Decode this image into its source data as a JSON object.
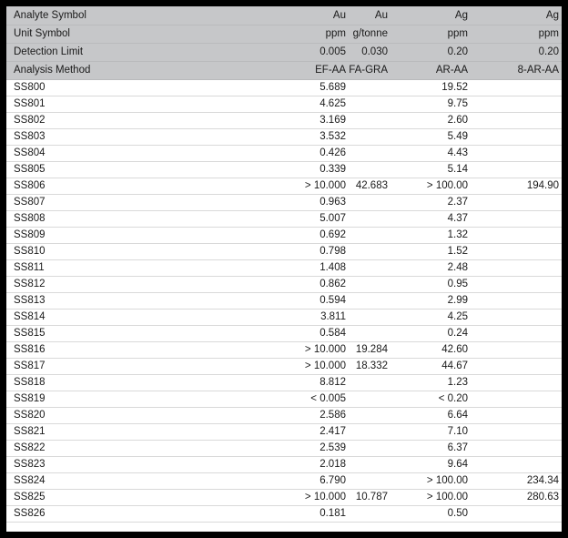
{
  "colors": {
    "frame": "#000000",
    "header_bg": "#c6c7c9",
    "row_line": "#d9d9d9"
  },
  "header": {
    "rows": [
      {
        "label": "Analyte Symbol",
        "values": [
          "Au",
          "Au",
          "Ag",
          "Ag"
        ]
      },
      {
        "label": "Unit Symbol",
        "values": [
          "ppm",
          "g/tonne",
          "ppm",
          "ppm"
        ]
      },
      {
        "label": "Detection Limit",
        "values": [
          "0.005",
          "0.030",
          "0.20",
          "0.20"
        ]
      },
      {
        "label": "Analysis Method",
        "values": [
          "EF-AA",
          "FA-GRA",
          "AR-AA",
          "8-AR-AA"
        ]
      }
    ]
  },
  "rows": [
    {
      "sample": "SS800",
      "values": [
        "5.689",
        "",
        "19.52",
        ""
      ]
    },
    {
      "sample": "SS801",
      "values": [
        "4.625",
        "",
        "9.75",
        ""
      ]
    },
    {
      "sample": "SS802",
      "values": [
        "3.169",
        "",
        "2.60",
        ""
      ]
    },
    {
      "sample": "SS803",
      "values": [
        "3.532",
        "",
        "5.49",
        ""
      ]
    },
    {
      "sample": "SS804",
      "values": [
        "0.426",
        "",
        "4.43",
        ""
      ]
    },
    {
      "sample": "SS805",
      "values": [
        "0.339",
        "",
        "5.14",
        ""
      ]
    },
    {
      "sample": "SS806",
      "values": [
        "> 10.000",
        "42.683",
        "> 100.00",
        "194.90"
      ]
    },
    {
      "sample": "SS807",
      "values": [
        "0.963",
        "",
        "2.37",
        ""
      ]
    },
    {
      "sample": "SS808",
      "values": [
        "5.007",
        "",
        "4.37",
        ""
      ]
    },
    {
      "sample": "SS809",
      "values": [
        "0.692",
        "",
        "1.32",
        ""
      ]
    },
    {
      "sample": "SS810",
      "values": [
        "0.798",
        "",
        "1.52",
        ""
      ]
    },
    {
      "sample": "SS811",
      "values": [
        "1.408",
        "",
        "2.48",
        ""
      ]
    },
    {
      "sample": "SS812",
      "values": [
        "0.862",
        "",
        "0.95",
        ""
      ]
    },
    {
      "sample": "SS813",
      "values": [
        "0.594",
        "",
        "2.99",
        ""
      ]
    },
    {
      "sample": "SS814",
      "values": [
        "3.811",
        "",
        "4.25",
        ""
      ]
    },
    {
      "sample": "SS815",
      "values": [
        "0.584",
        "",
        "0.24",
        ""
      ]
    },
    {
      "sample": "SS816",
      "values": [
        "> 10.000",
        "19.284",
        "42.60",
        ""
      ]
    },
    {
      "sample": "SS817",
      "values": [
        "> 10.000",
        "18.332",
        "44.67",
        ""
      ]
    },
    {
      "sample": "SS818",
      "values": [
        "8.812",
        "",
        "1.23",
        ""
      ]
    },
    {
      "sample": "SS819",
      "values": [
        "< 0.005",
        "",
        "< 0.20",
        ""
      ]
    },
    {
      "sample": "SS820",
      "values": [
        "2.586",
        "",
        "6.64",
        ""
      ]
    },
    {
      "sample": "SS821",
      "values": [
        "2.417",
        "",
        "7.10",
        ""
      ]
    },
    {
      "sample": "SS822",
      "values": [
        "2.539",
        "",
        "6.37",
        ""
      ]
    },
    {
      "sample": "SS823",
      "values": [
        "2.018",
        "",
        "9.64",
        ""
      ]
    },
    {
      "sample": "SS824",
      "values": [
        "6.790",
        "",
        "> 100.00",
        "234.34"
      ]
    },
    {
      "sample": "SS825",
      "values": [
        "> 10.000",
        "10.787",
        "> 100.00",
        "280.63"
      ]
    },
    {
      "sample": "SS826",
      "values": [
        "0.181",
        "",
        "0.50",
        ""
      ]
    }
  ]
}
